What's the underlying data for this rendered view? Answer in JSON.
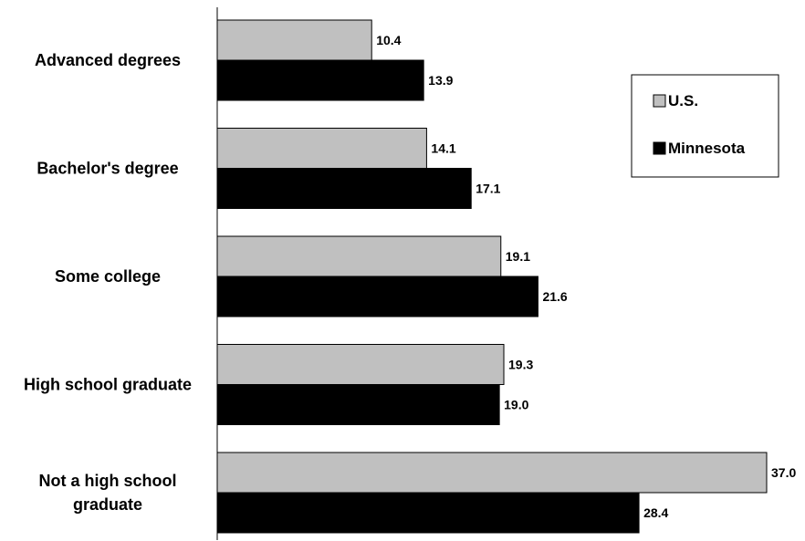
{
  "chart_data": {
    "type": "bar",
    "orientation": "horizontal",
    "categories": [
      [
        "Advanced degrees"
      ],
      [
        "Bachelor's degree"
      ],
      [
        "Some college"
      ],
      [
        "High school graduate"
      ],
      [
        "Not a high school",
        "graduate"
      ]
    ],
    "series": [
      {
        "name": "U.S.",
        "color": "#c0c0c0",
        "values": [
          10.4,
          14.1,
          19.1,
          19.3,
          37.0
        ]
      },
      {
        "name": "Minnesota",
        "color": "#000000",
        "values": [
          13.9,
          17.1,
          21.6,
          19.0,
          28.4
        ]
      }
    ],
    "value_labels": [
      [
        "10.4",
        "14.1",
        "19.1",
        "19.3",
        "37.0"
      ],
      [
        "13.9",
        "17.1",
        "21.6",
        "19.0",
        "28.4"
      ]
    ],
    "xlim": [
      0,
      37.0
    ],
    "legend": "right",
    "grid": false,
    "title": "",
    "xlabel": "",
    "ylabel": ""
  }
}
